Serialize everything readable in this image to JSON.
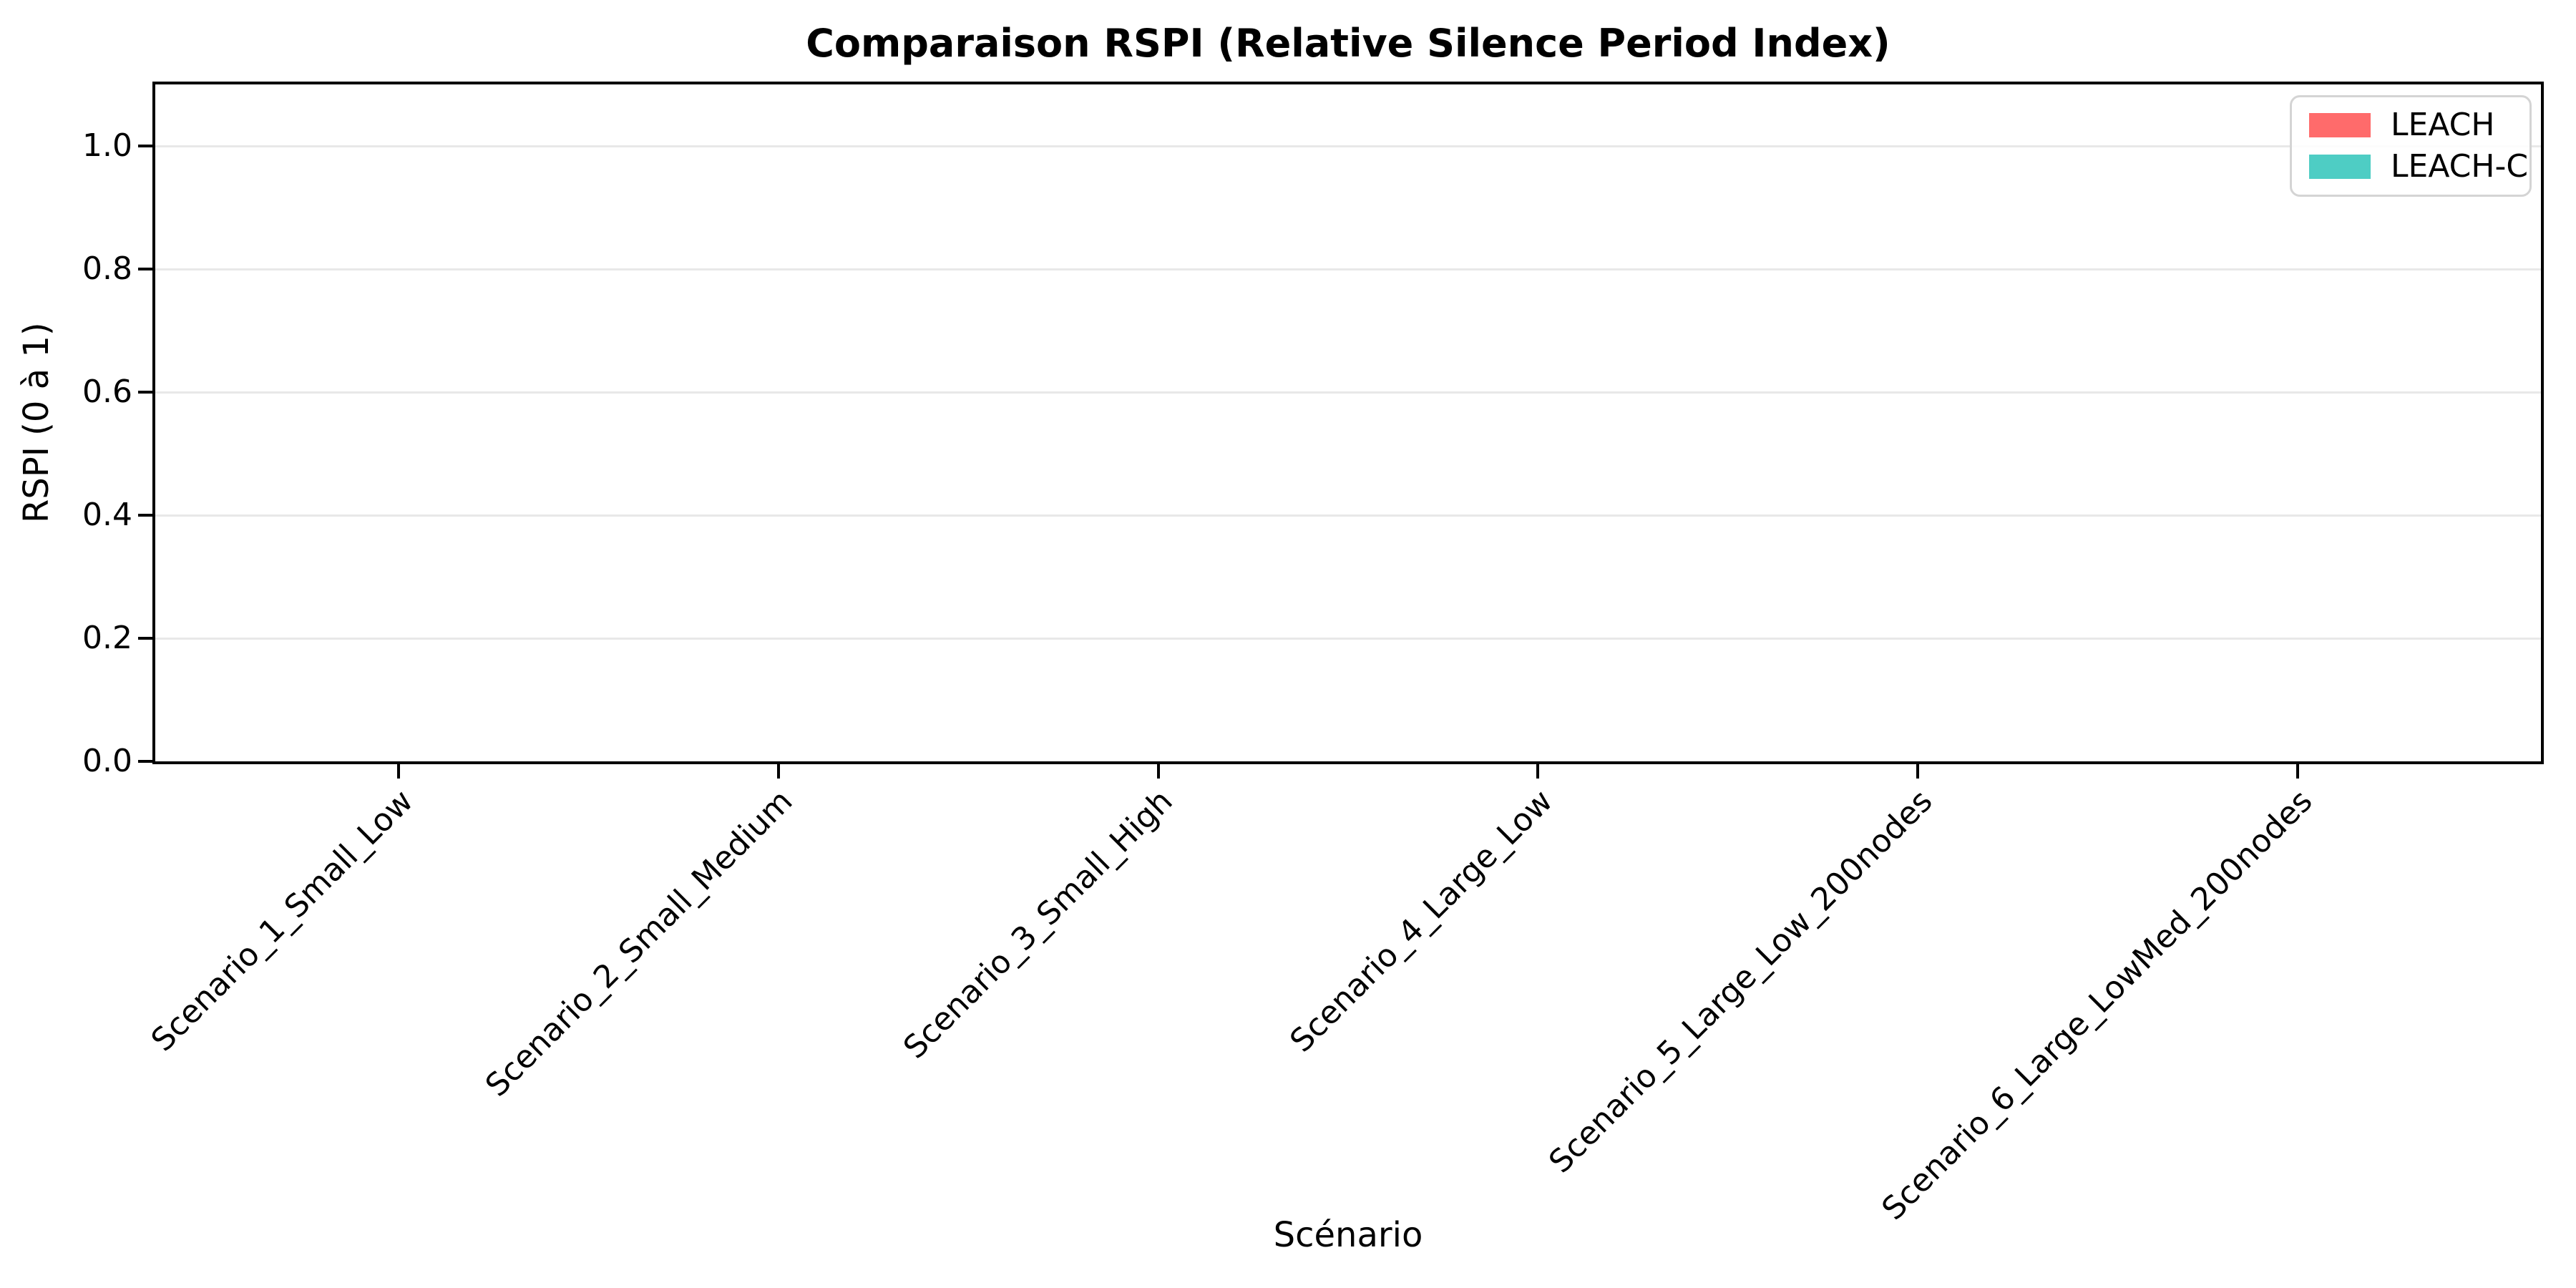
{
  "figure": {
    "background": "#ffffff",
    "text_color": "#000000",
    "grid_color": "#e8e8e8",
    "spine_color": "#000000"
  },
  "chart_data": {
    "type": "bar",
    "title": "Comparaison RSPI (Relative Silence Period Index)",
    "xlabel": "Scénario",
    "ylabel": "RSPI (0 à 1)",
    "categories": [
      "Scenario_1_Small_Low",
      "Scenario_2_Small_Medium",
      "Scenario_3_Small_High",
      "Scenario_4_Large_Low",
      "Scenario_5_Large_Low_200nodes",
      "Scenario_6_Large_LowMed_200nodes"
    ],
    "series": [
      {
        "name": "LEACH",
        "color": "#FF6B6B",
        "values": [
          0,
          0,
          0,
          0,
          0,
          0
        ]
      },
      {
        "name": "LEACH-C",
        "color": "#4ECDC4",
        "values": [
          0,
          0,
          0,
          0,
          0,
          0
        ]
      }
    ],
    "yticks": [
      0.0,
      0.2,
      0.4,
      0.6,
      0.8,
      1.0
    ],
    "ytick_labels": [
      "0.0",
      "0.2",
      "0.4",
      "0.6",
      "0.8",
      "1.0"
    ],
    "ylim": [
      0,
      1.1
    ],
    "xlim": [
      -0.64,
      5.64
    ],
    "bar_width": 0.35,
    "grid": true,
    "legend_position": "upper right",
    "xtick_rotation": -45
  }
}
